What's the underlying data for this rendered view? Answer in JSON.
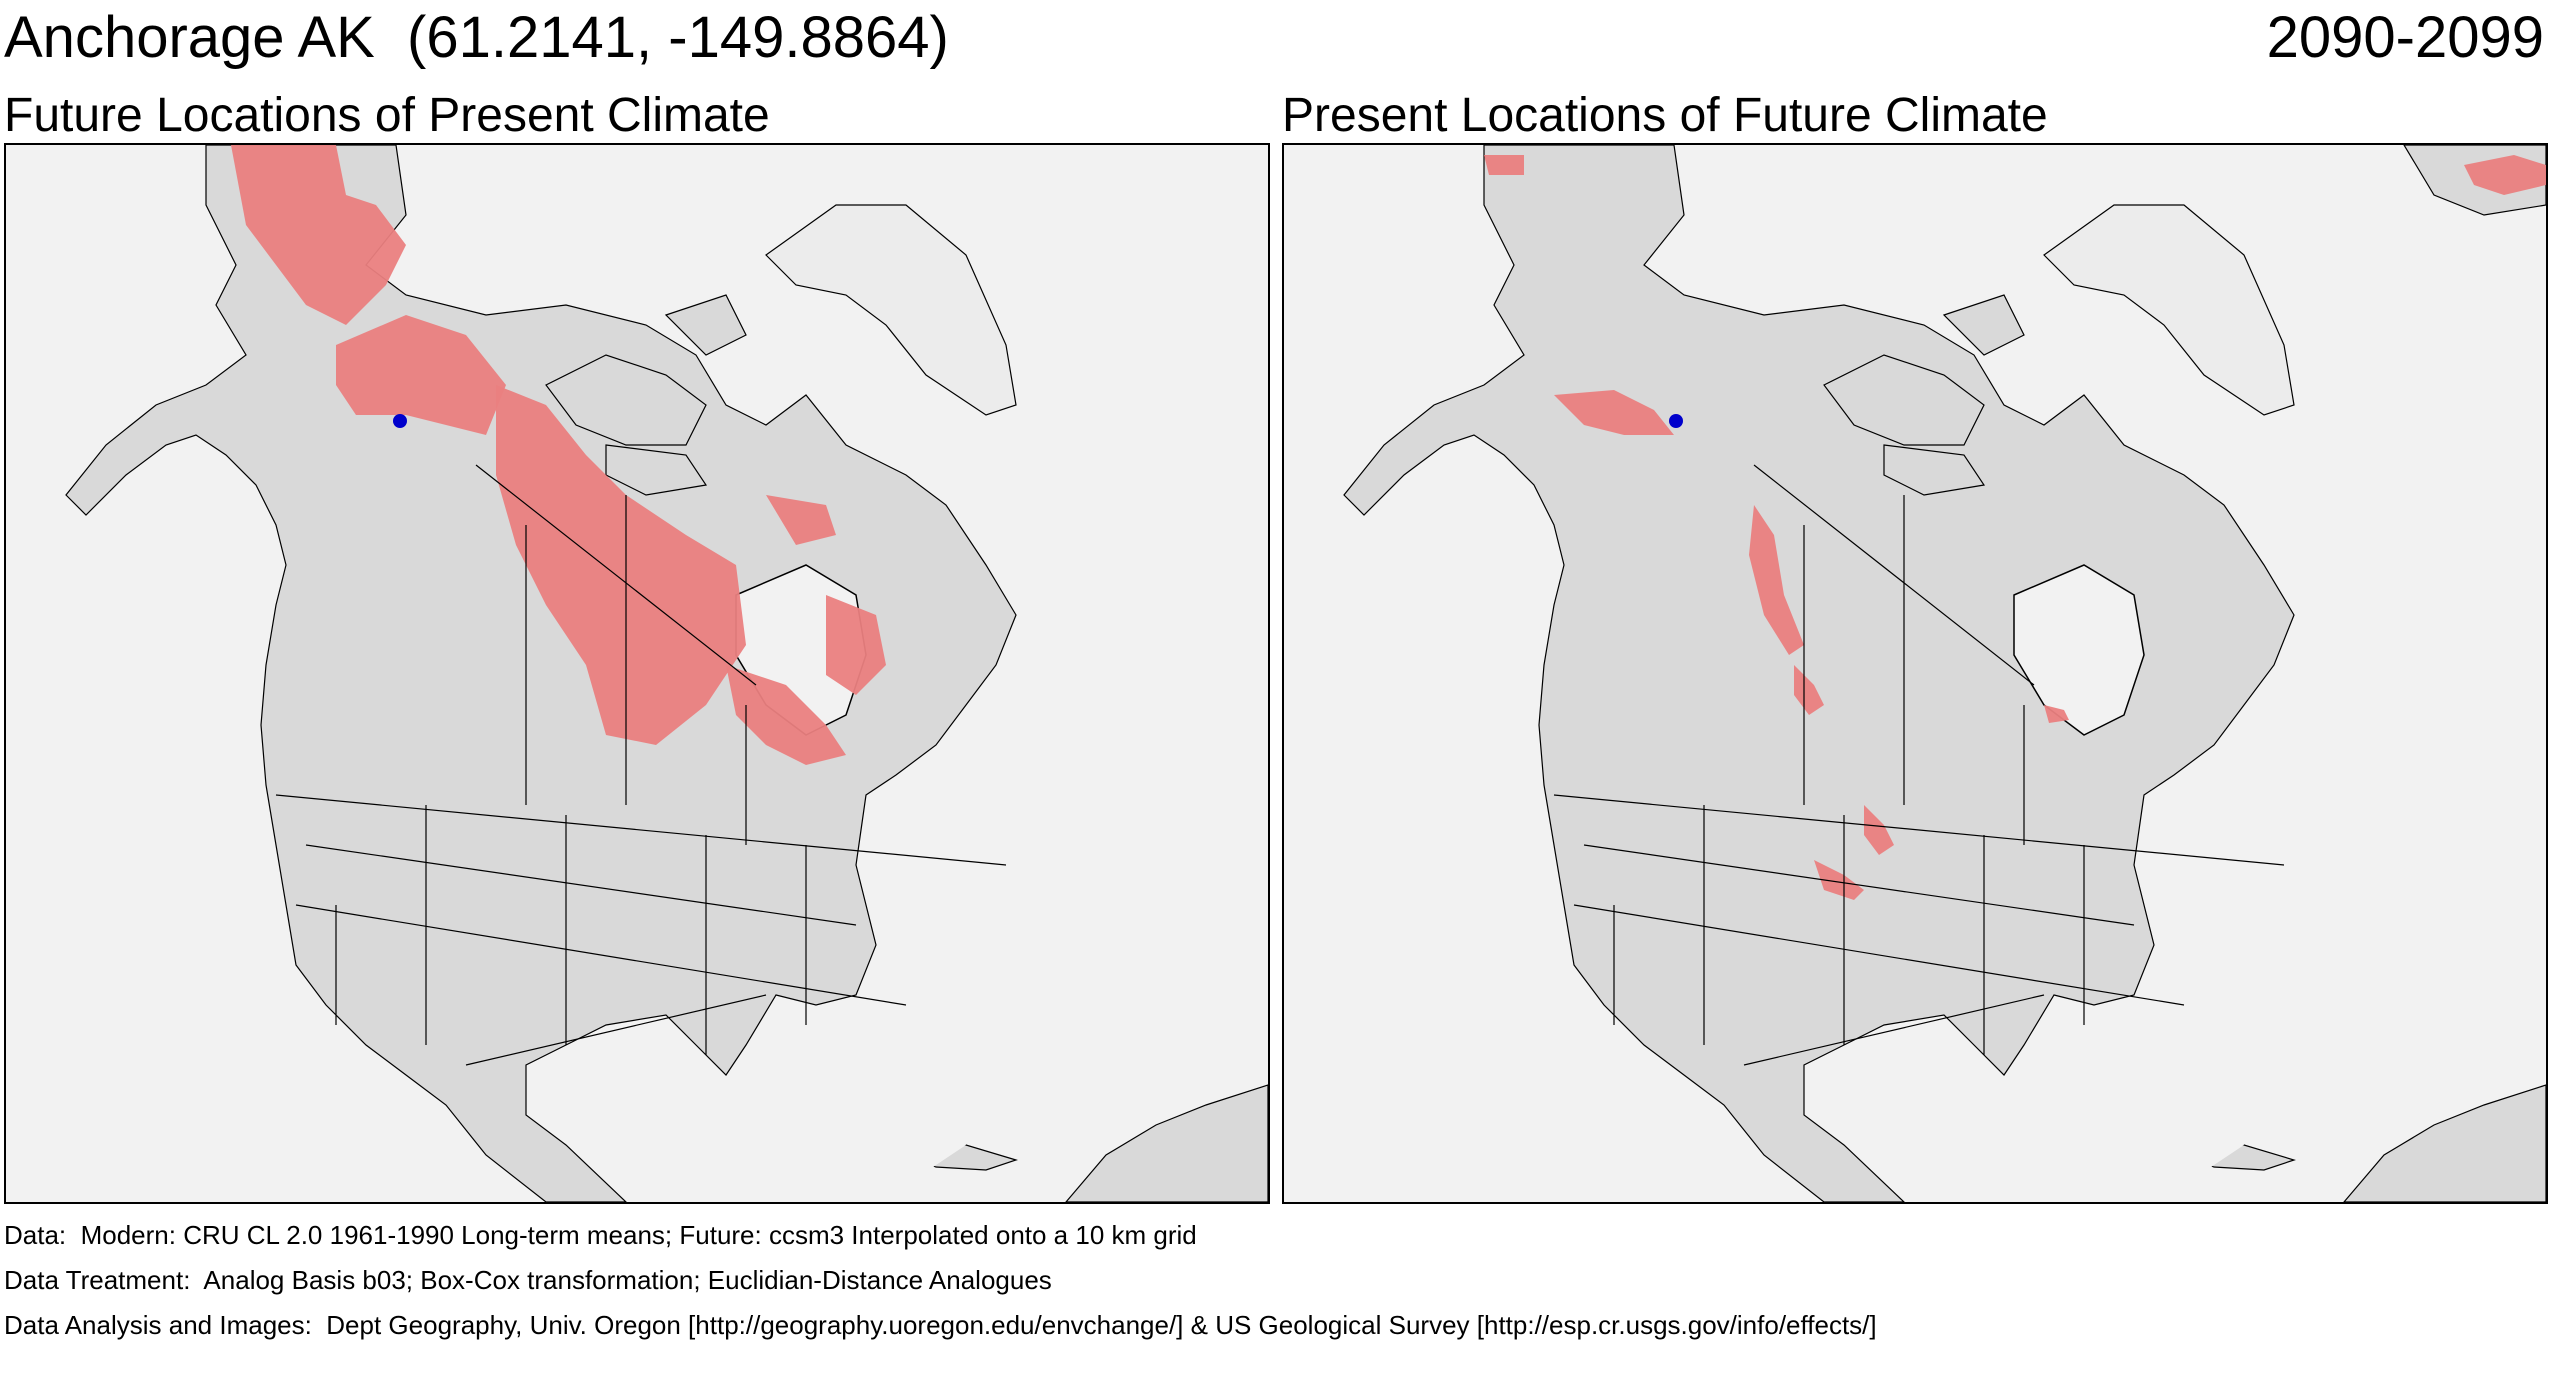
{
  "header": {
    "location": "Anchorage AK  (61.2141, -149.8864)",
    "period": "2090-2099"
  },
  "panels": [
    {
      "title": "Future Locations of Present Climate",
      "highlight_color": "#ea8080"
    },
    {
      "title": "Present Locations of Future Climate",
      "highlight_color": "#ea8080"
    }
  ],
  "marker": {
    "label": "Anchorage",
    "color": "#0000cc",
    "lat": 61.2141,
    "lon": -149.8864
  },
  "colors": {
    "land": "#d9d9d9",
    "ocean": "#f2f2f2",
    "ice": "#ececec",
    "border": "#000000"
  },
  "footer": {
    "data": "Data:  Modern: CRU CL 2.0 1961-1990 Long-term means; Future: ccsm3 Interpolated onto a 10 km grid",
    "treatment": "Data Treatment:  Analog Basis b03; Box-Cox transformation; Euclidian-Distance Analogues",
    "analysis": "Data Analysis and Images:  Dept Geography, Univ. Oregon [http://geography.uoregon.edu/envchange/] & US Geological Survey [http://esp.cr.usgs.gov/info/effects/]"
  }
}
